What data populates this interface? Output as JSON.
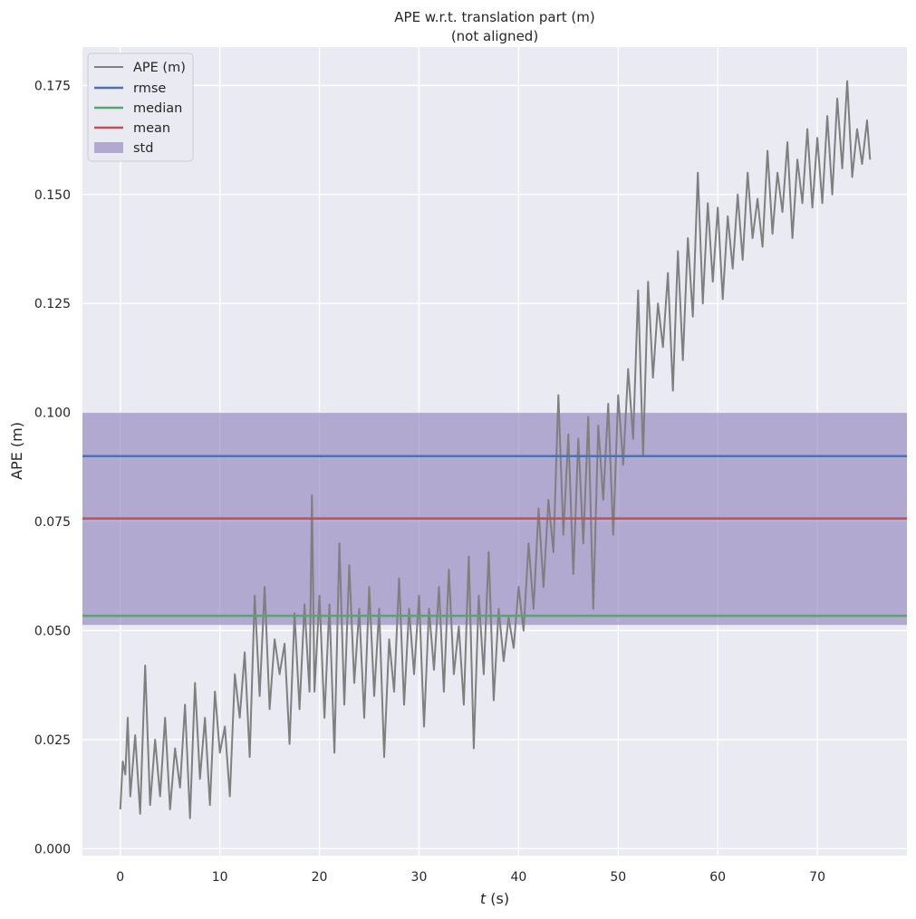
{
  "chart_data": {
    "type": "line",
    "title": "APE w.r.t. translation part (m)",
    "subtitle": "(not aligned)",
    "xlabel_italic": "t",
    "xlabel_unit": " (s)",
    "ylabel": "APE (m)",
    "xlim": [
      -3.8,
      79
    ],
    "ylim": [
      -0.0016,
      0.1838
    ],
    "xticks": [
      0,
      10,
      20,
      30,
      40,
      50,
      60,
      70
    ],
    "yticks": [
      0.0,
      0.025,
      0.05,
      0.075,
      0.1,
      0.125,
      0.15,
      0.175
    ],
    "ytick_labels": [
      "0.000",
      "0.025",
      "0.050",
      "0.075",
      "0.100",
      "0.125",
      "0.150",
      "0.175"
    ],
    "grid": true,
    "legend_position": "top-left",
    "background_color": "#eaeaf2",
    "stats": {
      "rmse": 0.09,
      "median": 0.0534,
      "mean": 0.0757,
      "std_band": [
        0.0513,
        0.1
      ]
    },
    "series": [
      {
        "name": "APE (m)",
        "color": "#7f7f7f",
        "x": [
          0.0,
          0.25,
          0.5,
          0.75,
          1.0,
          1.5,
          2.0,
          2.5,
          3.0,
          3.5,
          4.0,
          4.5,
          5.0,
          5.5,
          6.0,
          6.5,
          7.0,
          7.5,
          8.0,
          8.5,
          9.0,
          9.5,
          10.0,
          10.5,
          11.0,
          11.5,
          12.0,
          12.5,
          13.0,
          13.5,
          14.0,
          14.5,
          15.0,
          15.5,
          16.0,
          16.5,
          17.0,
          17.5,
          18.0,
          18.5,
          19.0,
          19.25,
          19.5,
          20.0,
          20.5,
          21.0,
          21.5,
          22.0,
          22.5,
          23.0,
          23.5,
          24.0,
          24.5,
          25.0,
          25.5,
          26.0,
          26.5,
          27.0,
          27.5,
          28.0,
          28.5,
          29.0,
          29.5,
          30.0,
          30.5,
          31.0,
          31.5,
          32.0,
          32.5,
          33.0,
          33.5,
          34.0,
          34.5,
          35.0,
          35.5,
          36.0,
          36.5,
          37.0,
          37.5,
          38.0,
          38.5,
          39.0,
          39.5,
          40.0,
          40.5,
          41.0,
          41.5,
          42.0,
          42.5,
          43.0,
          43.5,
          44.0,
          44.5,
          45.0,
          45.5,
          46.0,
          46.5,
          47.0,
          47.5,
          48.0,
          48.5,
          49.0,
          49.5,
          50.0,
          50.5,
          51.0,
          51.5,
          52.0,
          52.5,
          53.0,
          53.5,
          54.0,
          54.5,
          55.0,
          55.5,
          56.0,
          56.5,
          57.0,
          57.5,
          58.0,
          58.5,
          59.0,
          59.5,
          60.0,
          60.5,
          61.0,
          61.5,
          62.0,
          62.5,
          63.0,
          63.5,
          64.0,
          64.5,
          65.0,
          65.5,
          66.0,
          66.5,
          67.0,
          67.5,
          68.0,
          68.5,
          69.0,
          69.5,
          70.0,
          70.5,
          71.0,
          71.5,
          72.0,
          72.5,
          73.0,
          73.5,
          74.0,
          74.5,
          75.0,
          75.3
        ],
        "values": [
          0.009,
          0.02,
          0.017,
          0.03,
          0.012,
          0.026,
          0.008,
          0.042,
          0.01,
          0.025,
          0.012,
          0.03,
          0.009,
          0.023,
          0.014,
          0.033,
          0.007,
          0.038,
          0.016,
          0.03,
          0.01,
          0.036,
          0.022,
          0.028,
          0.012,
          0.04,
          0.03,
          0.045,
          0.021,
          0.058,
          0.035,
          0.06,
          0.032,
          0.048,
          0.04,
          0.047,
          0.024,
          0.054,
          0.032,
          0.056,
          0.036,
          0.081,
          0.036,
          0.058,
          0.03,
          0.056,
          0.022,
          0.07,
          0.033,
          0.065,
          0.038,
          0.055,
          0.03,
          0.06,
          0.035,
          0.055,
          0.021,
          0.048,
          0.036,
          0.062,
          0.033,
          0.055,
          0.04,
          0.058,
          0.028,
          0.055,
          0.041,
          0.06,
          0.036,
          0.064,
          0.04,
          0.051,
          0.033,
          0.067,
          0.023,
          0.058,
          0.04,
          0.068,
          0.034,
          0.055,
          0.043,
          0.053,
          0.046,
          0.06,
          0.05,
          0.07,
          0.055,
          0.078,
          0.06,
          0.08,
          0.068,
          0.104,
          0.072,
          0.095,
          0.063,
          0.094,
          0.07,
          0.099,
          0.055,
          0.097,
          0.08,
          0.102,
          0.072,
          0.104,
          0.088,
          0.11,
          0.094,
          0.128,
          0.09,
          0.13,
          0.108,
          0.125,
          0.115,
          0.132,
          0.105,
          0.137,
          0.112,
          0.14,
          0.122,
          0.155,
          0.125,
          0.148,
          0.13,
          0.147,
          0.126,
          0.145,
          0.133,
          0.15,
          0.135,
          0.155,
          0.14,
          0.149,
          0.138,
          0.16,
          0.141,
          0.155,
          0.146,
          0.162,
          0.14,
          0.158,
          0.148,
          0.165,
          0.147,
          0.163,
          0.148,
          0.168,
          0.15,
          0.172,
          0.156,
          0.176,
          0.154,
          0.165,
          0.157,
          0.167,
          0.158
        ]
      },
      {
        "name": "rmse",
        "color": "#4c72b0"
      },
      {
        "name": "median",
        "color": "#55a868"
      },
      {
        "name": "mean",
        "color": "#c44e52"
      },
      {
        "name": "std",
        "color": "#8172b3"
      }
    ]
  }
}
